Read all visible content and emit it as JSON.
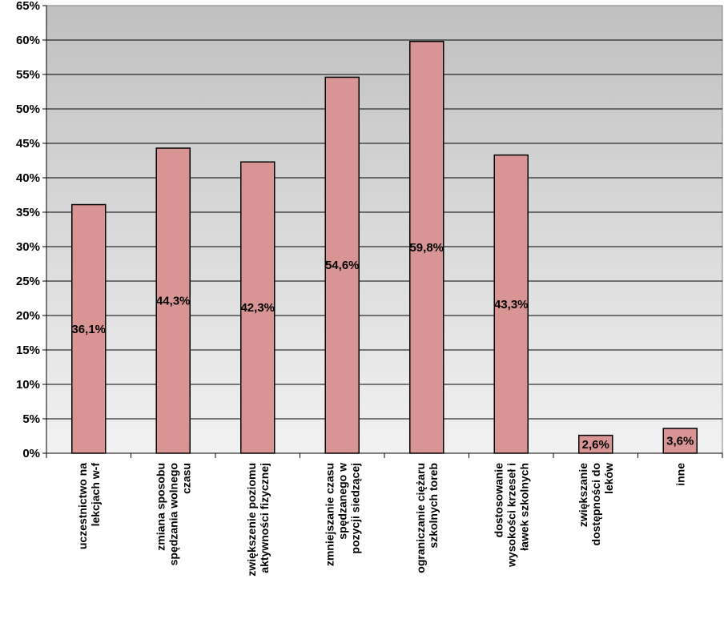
{
  "chart_data": {
    "type": "bar",
    "categories": [
      [
        "uczestnictwo na",
        "lekcjach w-f"
      ],
      [
        "zmiana sposobu",
        "spędzania wolnego",
        "czasu"
      ],
      [
        "zwiększenie poziomu",
        "aktywności fizycznej"
      ],
      [
        "zmniejszanie czasu",
        "spędzanego w",
        "pozycji siedzącej"
      ],
      [
        "ograniczanie ciężaru",
        "szkolnych toreb"
      ],
      [
        "dostosowanie",
        "wysokości krzeseł i",
        "ławek szkolnych"
      ],
      [
        "zwiększanie",
        "dostępności do",
        "leków"
      ],
      [
        "inne"
      ]
    ],
    "values": [
      36.1,
      44.3,
      42.3,
      54.6,
      59.8,
      43.3,
      2.6,
      3.6
    ],
    "data_labels": [
      "36,1%",
      "44,3%",
      "42,3%",
      "54,6%",
      "59,8%",
      "43,3%",
      "2,6%",
      "3,6%"
    ],
    "yticks": [
      "0%",
      "5%",
      "10%",
      "15%",
      "20%",
      "25%",
      "30%",
      "35%",
      "40%",
      "45%",
      "50%",
      "55%",
      "60%",
      "65%"
    ],
    "ylim": [
      0,
      65
    ],
    "grid": true,
    "colors": {
      "bar_fill": "#d99594",
      "bar_stroke": "#000000",
      "plot_gradient_top": "#c0c0c0",
      "plot_gradient_bottom": "#f2f2f2",
      "gridline": "#000000"
    }
  }
}
